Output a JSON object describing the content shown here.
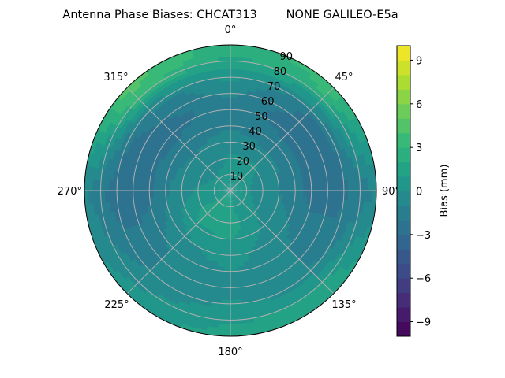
{
  "chart_data": {
    "type": "heatmap",
    "subtype": "polar-filled-contour",
    "title": "Antenna Phase Biases: CHCAT313        NONE GALILEO-E5a",
    "azimuth_ticks": [
      "0°",
      "45°",
      "90°",
      "135°",
      "180°",
      "225°",
      "270°",
      "315°"
    ],
    "radial_ticks": [
      "10",
      "20",
      "30",
      "40",
      "50",
      "60",
      "70",
      "80",
      "90"
    ],
    "radial_range": [
      0,
      90
    ],
    "azimuth_direction": "clockwise from north",
    "grid": true,
    "colorbar": {
      "label": "Bias (mm)",
      "colormap": "viridis",
      "range": [
        -10,
        10
      ],
      "levels": 20,
      "ticks": [
        "−9",
        "−6",
        "−3",
        "0",
        "3",
        "6",
        "9"
      ],
      "tick_values": [
        -9,
        -6,
        -3,
        0,
        3,
        6,
        9
      ],
      "placement": "right"
    },
    "grid_azimuths": [
      0,
      45,
      90,
      135,
      180,
      225,
      270,
      315
    ],
    "grid_zenith": [
      0,
      22.5,
      37.5,
      52.5,
      67.5,
      82.5,
      90
    ],
    "values_mm": [
      [
        0.5,
        0.5,
        0.5,
        0.5,
        1.0,
        1.0,
        0.5,
        0.5
      ],
      [
        0.0,
        0.0,
        -0.5,
        0.0,
        1.5,
        1.5,
        0.0,
        -0.5
      ],
      [
        -1.0,
        -1.5,
        -1.5,
        -0.5,
        0.5,
        0.0,
        -1.0,
        -1.5
      ],
      [
        -1.5,
        -2.5,
        -2.5,
        -1.0,
        0.0,
        -1.0,
        -2.5,
        -2.5
      ],
      [
        0.0,
        -2.0,
        -2.5,
        -1.0,
        0.0,
        -1.0,
        -3.0,
        -1.5
      ],
      [
        2.0,
        3.0,
        -1.5,
        1.5,
        1.0,
        0.0,
        -1.5,
        4.0
      ],
      [
        2.5,
        3.5,
        -1.0,
        2.0,
        1.5,
        0.5,
        -1.0,
        4.5
      ]
    ]
  }
}
